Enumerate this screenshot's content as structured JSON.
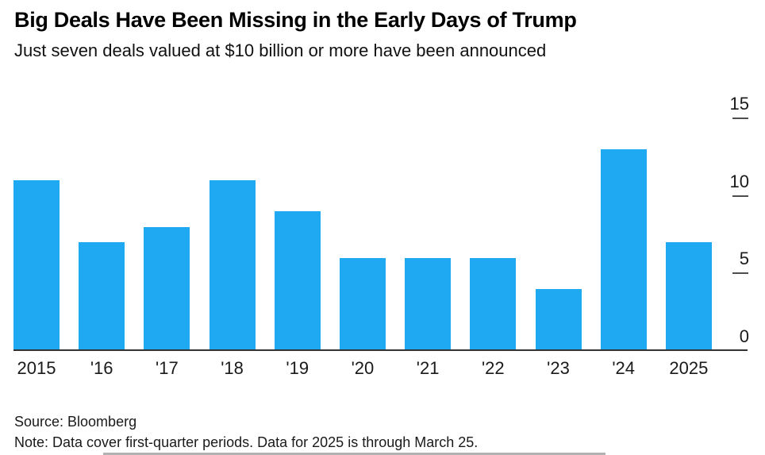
{
  "header": {
    "title": "Big Deals Have Been Missing in the Early Days of Trump",
    "subtitle": "Just seven deals valued at $10 billion or more have been announced"
  },
  "chart_data": {
    "type": "bar",
    "title": "Big Deals Have Been Missing in the Early Days of Trump",
    "subtitle": "Just seven deals valued at $10 billion or more have been announced",
    "categories": [
      "2015",
      "'16",
      "'17",
      "'18",
      "'19",
      "'20",
      "'21",
      "'22",
      "'23",
      "'24",
      "2025"
    ],
    "values": [
      11,
      7,
      8,
      11,
      9,
      6,
      6,
      6,
      4,
      13,
      7
    ],
    "xlabel": "",
    "ylabel": "",
    "ylim": [
      0,
      15
    ],
    "yticks": [
      0,
      5,
      10,
      15
    ],
    "axis_side": "right",
    "grid": false,
    "legend": "none",
    "bar_color": "#1ea9f2",
    "axis_line_color": "#333333",
    "tick_color": "#4d4d4d"
  },
  "footer": {
    "source": "Source: Bloomberg",
    "note": "Note: Data cover first-quarter periods. Data for 2025 is through March 25."
  }
}
